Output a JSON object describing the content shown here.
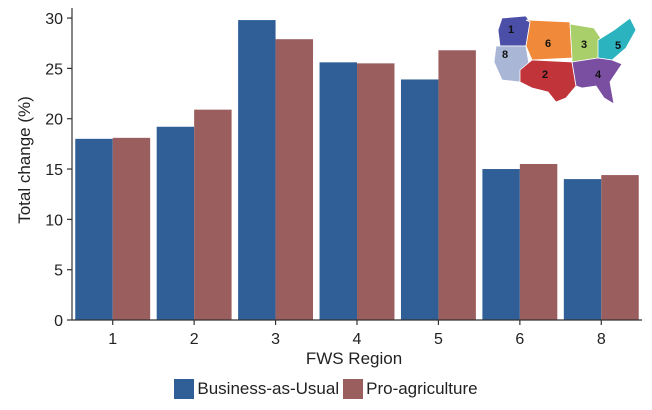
{
  "chart_data": {
    "type": "bar",
    "categories": [
      "1",
      "2",
      "3",
      "4",
      "5",
      "6",
      "8"
    ],
    "series": [
      {
        "name": "Business-as-Usual",
        "color": "#2f5f96",
        "values": [
          18.0,
          19.2,
          29.8,
          25.6,
          23.9,
          15.0,
          14.0
        ]
      },
      {
        "name": "Pro-agriculture",
        "color": "#9b5e5e",
        "values": [
          18.1,
          20.9,
          27.9,
          25.5,
          26.8,
          15.5,
          14.4
        ]
      }
    ],
    "xlabel": "FWS Region",
    "ylabel": "Total change (%)",
    "ylim": [
      0,
      31
    ],
    "yticks": [
      0,
      5,
      10,
      15,
      20,
      25,
      30
    ],
    "grid": false,
    "legend_position": "bottom"
  },
  "inset_map": {
    "labels": [
      "1",
      "8",
      "6",
      "3",
      "5",
      "2",
      "4"
    ],
    "colors": {
      "1": "#4b4fa8",
      "8": "#a9b6d6",
      "6": "#f08a3a",
      "3": "#a8cf6a",
      "5": "#2bb3bf",
      "2": "#c0343a",
      "4": "#7a4fa2"
    }
  }
}
